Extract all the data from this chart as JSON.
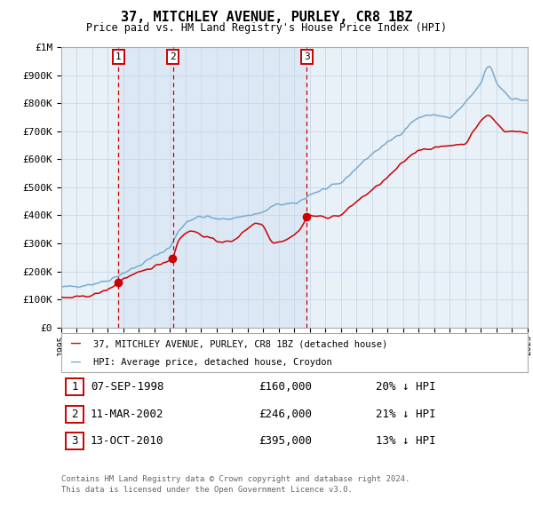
{
  "title": "37, MITCHLEY AVENUE, PURLEY, CR8 1BZ",
  "subtitle": "Price paid vs. HM Land Registry's House Price Index (HPI)",
  "legend_line1": "37, MITCHLEY AVENUE, PURLEY, CR8 1BZ (detached house)",
  "legend_line2": "HPI: Average price, detached house, Croydon",
  "table_rows": [
    [
      "1",
      "07-SEP-1998",
      "£160,000",
      "20% ↓ HPI"
    ],
    [
      "2",
      "11-MAR-2002",
      "£246,000",
      "21% ↓ HPI"
    ],
    [
      "3",
      "13-OCT-2010",
      "£395,000",
      "13% ↓ HPI"
    ]
  ],
  "footnote1": "Contains HM Land Registry data © Crown copyright and database right 2024.",
  "footnote2": "This data is licensed under the Open Government Licence v3.0.",
  "sale_prices": [
    160000,
    246000,
    395000
  ],
  "red_line_color": "#cc0000",
  "blue_line_color": "#7aabcf",
  "shade_color": "#dce9f5",
  "vline_red_color": "#cc0000",
  "vline_grey_color": "#aaaaaa",
  "grid_color": "#c8d8e8",
  "bg_color": "#e8f0f8",
  "ylim": [
    0,
    1000000
  ],
  "yticks": [
    0,
    100000,
    200000,
    300000,
    400000,
    500000,
    600000,
    700000,
    800000,
    900000,
    1000000
  ],
  "ylabel_map": {
    "0": "£0",
    "100000": "£100K",
    "200000": "£200K",
    "300000": "£300K",
    "400000": "£400K",
    "500000": "£500K",
    "600000": "£600K",
    "700000": "£700K",
    "800000": "£800K",
    "900000": "£900K",
    "1000000": "£1M"
  }
}
